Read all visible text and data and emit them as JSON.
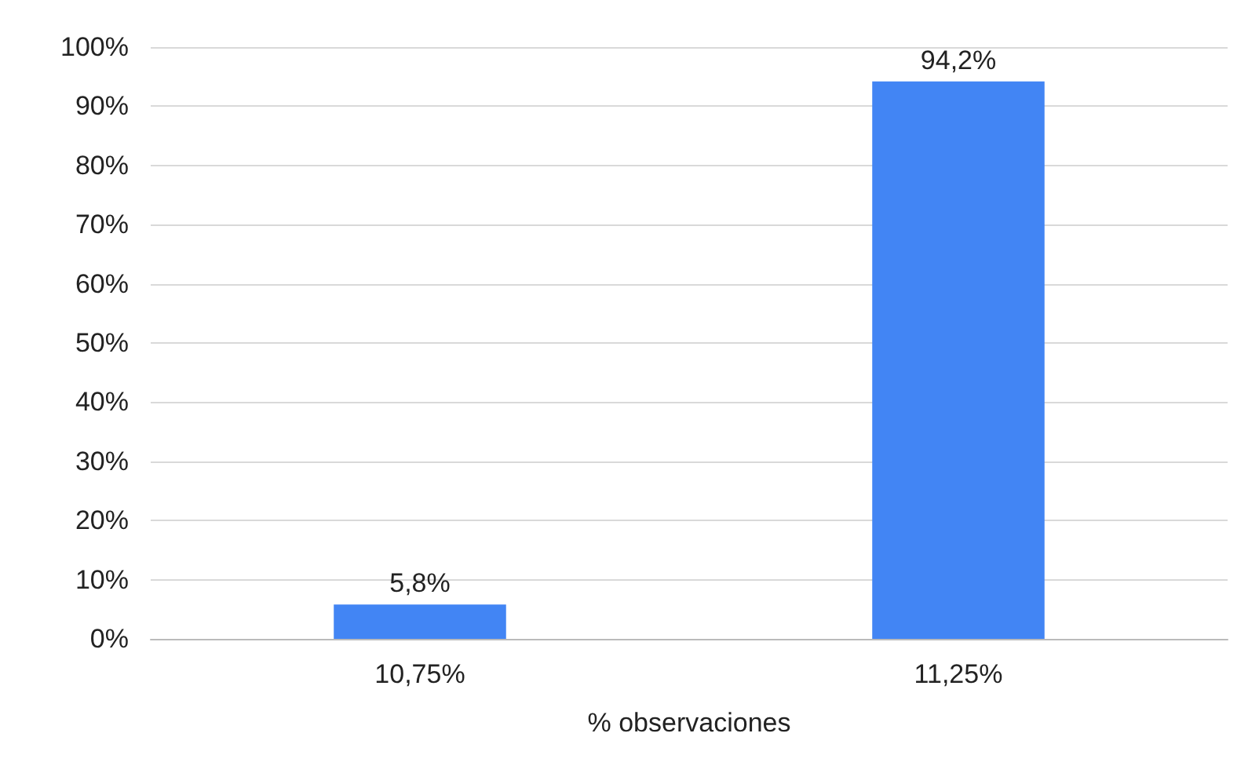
{
  "chart_data": {
    "type": "bar",
    "xlabel": "% observaciones",
    "categories": [
      "10,75%",
      "11,25%"
    ],
    "values": [
      5.8,
      94.2
    ],
    "value_labels": [
      "5,8%",
      "94,2%"
    ],
    "color": "#4285f4",
    "ylim": [
      0,
      100
    ],
    "yticks": [
      {
        "value": 0,
        "label": "0%"
      },
      {
        "value": 10,
        "label": "10%"
      },
      {
        "value": 20,
        "label": "20%"
      },
      {
        "value": 30,
        "label": "30%"
      },
      {
        "value": 40,
        "label": "40%"
      },
      {
        "value": 50,
        "label": "50%"
      },
      {
        "value": 60,
        "label": "60%"
      },
      {
        "value": 70,
        "label": "70%"
      },
      {
        "value": 80,
        "label": "80%"
      },
      {
        "value": 90,
        "label": "90%"
      },
      {
        "value": 100,
        "label": "100%"
      }
    ],
    "grid": "y"
  }
}
